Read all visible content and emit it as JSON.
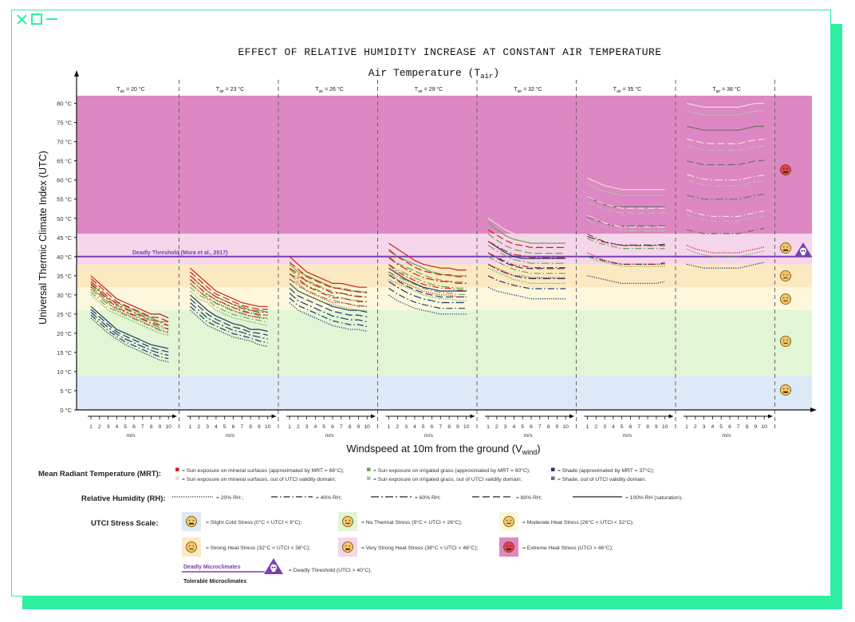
{
  "window": {
    "controls": [
      "close-icon",
      "maximize-icon",
      "minimize-icon"
    ],
    "accent": "#2ef0a0"
  },
  "chart_data": {
    "type": "line",
    "title": "EFFECT OF RELATIVE HUMIDITY INCREASE AT CONSTANT AIR TEMPERATURE",
    "top_axis_label": "Air Temperature (T",
    "top_axis_sub": "air",
    "top_axis_close": ")",
    "xlabel": "Windspeed at 10m from the ground (V",
    "xlabel_sub": "wind",
    "xlabel_close": ")",
    "ylabel": "Universal Thermic Climate Index (UTC)",
    "ylim": [
      0,
      82
    ],
    "yticks": [
      "0 °C",
      "5 °C",
      "10 °C",
      "15 °C",
      "20 °C",
      "25 °C",
      "30 °C",
      "35 °C",
      "40 °C",
      "45 °C",
      "50 °C",
      "55 °C",
      "60 °C",
      "65 °C",
      "70 °C",
      "75 °C",
      "80 °C"
    ],
    "x_ticks": [
      "1",
      "2",
      "3",
      "4",
      "5",
      "6",
      "7",
      "8",
      "9",
      "10"
    ],
    "x_unit": "m/s",
    "panels": [
      {
        "label_pre": "T",
        "label_sub": "air",
        "label_post": " = 20 °C",
        "tair": 20,
        "mrt_sun": {
          "rh20": [
            32,
            30,
            28,
            26,
            25,
            24,
            23,
            22,
            21,
            20
          ],
          "rh100": [
            35,
            33,
            31,
            29,
            28,
            27,
            26,
            25,
            25,
            24
          ]
        },
        "mrt_grass": {
          "rh20": [
            30,
            28,
            26,
            25,
            24,
            23,
            22,
            21,
            20,
            19.5
          ],
          "rh100": [
            33,
            31,
            29,
            28,
            27,
            26,
            25,
            24,
            23,
            23
          ]
        },
        "mrt_shade": {
          "rh20": [
            24,
            22,
            20,
            18.5,
            17,
            16,
            15,
            14,
            13,
            12.5
          ],
          "rh100": [
            27,
            25,
            23,
            21,
            20,
            19,
            18,
            17,
            16.5,
            16
          ]
        }
      },
      {
        "label_pre": "T",
        "label_sub": "air",
        "label_post": " = 23 °C",
        "tair": 23,
        "mrt_sun": {
          "rh20": [
            33,
            31,
            29,
            28,
            27,
            26,
            25,
            24.5,
            24,
            24
          ],
          "rh100": [
            37,
            35,
            33,
            31,
            30,
            29,
            28,
            27.5,
            27,
            27
          ]
        },
        "mrt_grass": {
          "rh20": [
            31,
            29,
            28,
            26,
            25,
            24,
            23.5,
            23,
            22.5,
            22
          ],
          "rh100": [
            35,
            33,
            31,
            29.5,
            28.5,
            27.5,
            27,
            26,
            26,
            25.5
          ]
        },
        "mrt_shade": {
          "rh20": [
            26,
            24,
            22,
            21,
            20,
            19,
            18.5,
            18,
            17,
            16.5
          ],
          "rh100": [
            30,
            28,
            26,
            24.5,
            23.5,
            22.5,
            22,
            21,
            21,
            20.5
          ]
        }
      },
      {
        "label_pre": "T",
        "label_sub": "air",
        "label_post": " = 26 °C",
        "tair": 26,
        "mrt_sun": {
          "rh20": [
            34,
            33,
            31,
            30,
            29,
            28,
            28,
            27.5,
            27,
            27
          ],
          "rh100": [
            40,
            38,
            36,
            35,
            34,
            33,
            33,
            32.5,
            32,
            32
          ]
        },
        "mrt_grass": {
          "rh20": [
            33,
            31,
            30,
            29,
            28,
            27.5,
            27,
            26.5,
            26,
            26
          ],
          "rh100": [
            38,
            36,
            35,
            34,
            33,
            32,
            31.5,
            31,
            31,
            30.5
          ]
        },
        "mrt_shade": {
          "rh20": [
            28,
            26,
            25,
            24,
            23,
            22,
            21.5,
            21,
            21,
            20.5
          ],
          "rh100": [
            33,
            31,
            30,
            29,
            28,
            27,
            26.5,
            26,
            26,
            25.5
          ]
        }
      },
      {
        "label_pre": "T",
        "label_sub": "air",
        "label_post": " = 29 °C",
        "tair": 29,
        "mrt_sun": {
          "rh20": [
            36,
            34,
            33,
            32,
            31,
            30.5,
            30,
            30,
            29.5,
            29.5
          ],
          "rh100": [
            43.5,
            42,
            40.5,
            39,
            38,
            37.5,
            37,
            37,
            36.5,
            36.5
          ]
        },
        "mrt_grass": {
          "rh20": [
            34,
            33,
            32,
            31,
            30,
            29.5,
            29,
            29,
            28.5,
            28.5
          ],
          "rh100": [
            42,
            40,
            39,
            38,
            37,
            36,
            35.5,
            35,
            35,
            35
          ]
        },
        "mrt_shade": {
          "rh20": [
            30,
            28.5,
            27.5,
            26.5,
            26,
            25.5,
            25,
            25,
            25,
            25
          ],
          "rh100": [
            37,
            35.5,
            34,
            33,
            32,
            31.5,
            31,
            31,
            31,
            31
          ]
        }
      },
      {
        "label_pre": "T",
        "label_sub": "air",
        "label_post": " = 32 °C",
        "tair": 32,
        "mrt_sun": {
          "rh20": [
            38,
            37,
            36,
            35,
            35,
            34.5,
            34.5,
            34.5,
            34.5,
            34.5
          ],
          "rh100": [
            50,
            48.5,
            47,
            46,
            45.5,
            45,
            45,
            45,
            45,
            45
          ]
        },
        "mrt_grass": {
          "rh20": [
            37,
            36,
            35,
            34,
            33.5,
            33,
            33,
            33,
            33,
            33
          ],
          "rh100": [
            49,
            47,
            45.5,
            44.5,
            44,
            43.5,
            43.5,
            43.5,
            43.5,
            43.5
          ]
        },
        "mrt_shade": {
          "rh20": [
            32,
            31,
            30.5,
            30,
            29.5,
            29,
            29,
            29,
            29,
            29
          ],
          "rh100": [
            44,
            42.5,
            41,
            40,
            39.5,
            39.5,
            39.5,
            39.5,
            39.5,
            39.5
          ]
        }
      },
      {
        "label_pre": "T",
        "label_sub": "air",
        "label_post": " = 35 °C",
        "tair": 35,
        "mrt_sun": {
          "rh20": [
            41,
            40,
            39,
            38.5,
            38,
            38,
            38,
            38,
            38,
            38
          ],
          "rh100": [
            60.5,
            59.5,
            58.5,
            58,
            57.5,
            57.5,
            57.5,
            57.5,
            57.5,
            57.5
          ]
        },
        "mrt_grass": {
          "rh20": [
            40,
            39,
            38.5,
            38,
            37.5,
            37.5,
            37.5,
            37.5,
            37.5,
            37.5
          ],
          "rh100": [
            59,
            58,
            57,
            56.5,
            56,
            56,
            56,
            56,
            56,
            56
          ]
        },
        "mrt_shade": {
          "rh20": [
            35,
            34.5,
            34,
            33.5,
            33,
            33,
            33,
            33,
            33,
            33.5
          ],
          "rh100": [
            55.5,
            54.5,
            53.5,
            53,
            53,
            53,
            53,
            53,
            53,
            53
          ]
        }
      },
      {
        "label_pre": "T",
        "label_sub": "air",
        "label_post": " = 38 °C",
        "tair": 38,
        "mrt_sun": {
          "rh20": [
            43,
            42,
            41.5,
            41,
            41,
            41,
            41,
            41.5,
            42,
            42.5
          ],
          "rh100": [
            80,
            79.5,
            79,
            79,
            79,
            79,
            79,
            79.5,
            80,
            80
          ]
        },
        "mrt_grass": {
          "rh20": [
            42,
            41,
            40.5,
            40,
            40,
            40,
            40,
            40.5,
            41,
            41.5
          ],
          "rh100": [
            78,
            77.5,
            77,
            77,
            77,
            77,
            77,
            77.5,
            78,
            78
          ]
        },
        "mrt_shade": {
          "rh20": [
            38,
            37.5,
            37,
            37,
            37,
            37,
            37,
            37.5,
            38,
            38.5
          ],
          "rh100": [
            74,
            73.5,
            73,
            73,
            73,
            73,
            73,
            73.5,
            74,
            74
          ]
        }
      }
    ],
    "stress_bands": [
      {
        "name": "Slight Cold Stress",
        "from": 0,
        "to": 9,
        "color": "#dde9f6"
      },
      {
        "name": "No Thermal Stress",
        "from": 9,
        "to": 26,
        "color": "#e2f5d5"
      },
      {
        "name": "Moderate Heat Stress",
        "from": 26,
        "to": 32,
        "color": "#fdf7dc"
      },
      {
        "name": "Strong Heat Stress",
        "from": 32,
        "to": 38,
        "color": "#fbe9c2"
      },
      {
        "name": "Very Strong Heat Stress",
        "from": 38,
        "to": 46,
        "color": "#f5d6ea"
      },
      {
        "name": "Extreme Heat Stress",
        "from": 46,
        "to": 82,
        "color": "#dd88c2"
      }
    ],
    "deadly_threshold": {
      "value": 40,
      "label": "Deadly Threshold (Mora et al., 2017)",
      "color": "#7a3fb0"
    },
    "colors": {
      "sun": "#cc1f1f",
      "grass": "#6aa84f",
      "shade": "#1f3a6b",
      "sun_out": "#f0dada",
      "grass_out": "#b9b9b9",
      "shade_out": "#6e6e6e"
    }
  },
  "legend": {
    "mrt_title": "Mean Radiant Temperature (MRT):",
    "mrt_items": [
      "= Sun exposure on mineral surfaces (approximated by MRT = 66°C);",
      "= Sun exposure on irrigated grass (approximated by MRT = 60°C);",
      "= Shade (approximated by MRT = 37°C);",
      "= Sun exposure on mineral surfaces, out of UTCI validity domain;",
      "= Sun exposure on irrigated grass, out of UTCI validity domain;",
      "= Shade, out of UTCI validity domain."
    ],
    "rh_title": "Relative Humidity (RH):",
    "rh_items": [
      "= 20% RH ;",
      "= 40% RH;",
      "= 60% RH;",
      "= 80% RH;",
      "= 100% RH (saturation)."
    ],
    "utci_title": "UTCI Stress Scale:",
    "utci_items": [
      "= Slight Cold Stress (0°C < UTCI < 9°C);",
      "= No Thermal Stress (9°C < UTCI < 26°C);",
      "= Moderate Heat Stress (26°C < UTCI < 32°C);",
      "= Strong Heat Stress (32°C <  UTCI < 38°C);",
      "= Very Strong Heat Stress (38°C <  UTCI < 46°C);",
      "= Extreme Heat Stress (UTCI > 46°C);"
    ],
    "deadly_label": "Deadly Microclimates",
    "tolerable_label": "Tolerable Microclimates",
    "deadly_item": "= Deadly Threshold (UTCI > 40°C)."
  }
}
